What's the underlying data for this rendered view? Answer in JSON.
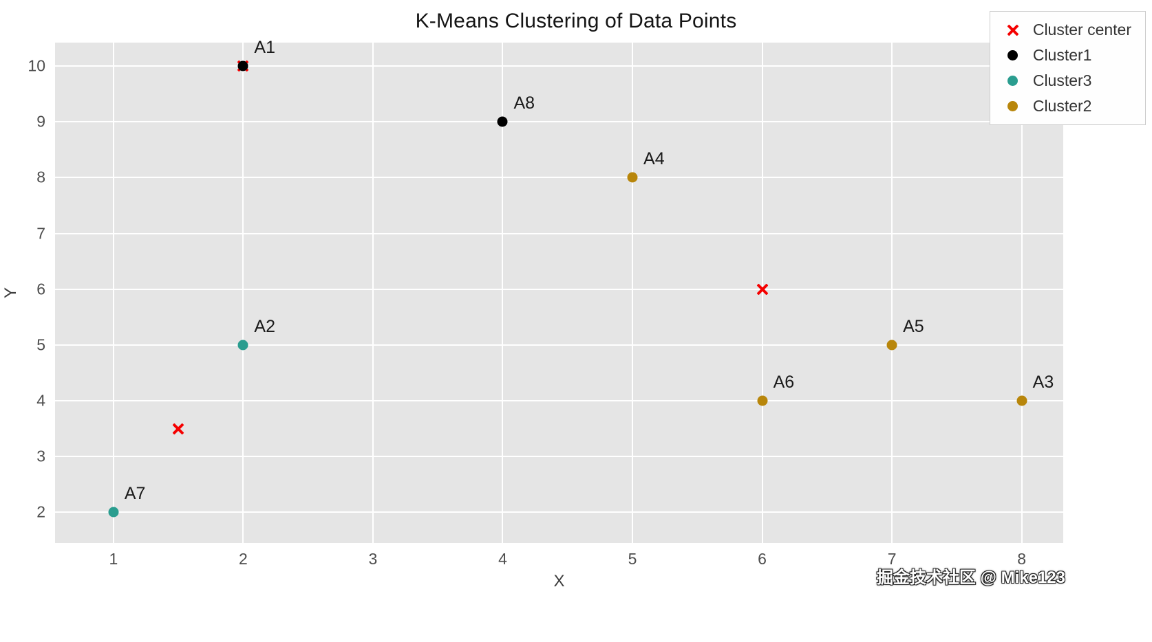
{
  "title": "K-Means Clustering of Data Points",
  "watermark": "掘金技术社区 @ Mike123",
  "chart_data": {
    "type": "scatter",
    "title": "K-Means Clustering of Data Points",
    "xlabel": "X",
    "ylabel": "Y",
    "xlim": [
      0.55,
      8.32
    ],
    "ylim": [
      1.45,
      10.42
    ],
    "xticks": [
      1,
      2,
      3,
      4,
      5,
      6,
      7,
      8
    ],
    "yticks": [
      2,
      3,
      4,
      5,
      6,
      7,
      8,
      9,
      10
    ],
    "grid": true,
    "plot_background": "#e5e5e5",
    "legend_position": "upper right",
    "series": [
      {
        "name": "Cluster center",
        "marker": "x",
        "color": "#f50000",
        "points": [
          {
            "x": 2,
            "y": 10
          },
          {
            "x": 6,
            "y": 6
          },
          {
            "x": 1.5,
            "y": 3.5
          }
        ]
      },
      {
        "name": "Cluster1",
        "marker": "circle",
        "color": "#000000",
        "points": [
          {
            "x": 2,
            "y": 10,
            "label": "A1"
          },
          {
            "x": 4,
            "y": 9,
            "label": "A8"
          }
        ]
      },
      {
        "name": "Cluster3",
        "marker": "circle",
        "color": "#2a9d8f",
        "points": [
          {
            "x": 2,
            "y": 5,
            "label": "A2"
          },
          {
            "x": 1,
            "y": 2,
            "label": "A7"
          }
        ]
      },
      {
        "name": "Cluster2",
        "marker": "circle",
        "color": "#b8860b",
        "points": [
          {
            "x": 5,
            "y": 8,
            "label": "A4"
          },
          {
            "x": 7,
            "y": 5,
            "label": "A5"
          },
          {
            "x": 6,
            "y": 4,
            "label": "A6"
          },
          {
            "x": 8,
            "y": 4,
            "label": "A3"
          }
        ]
      }
    ]
  }
}
